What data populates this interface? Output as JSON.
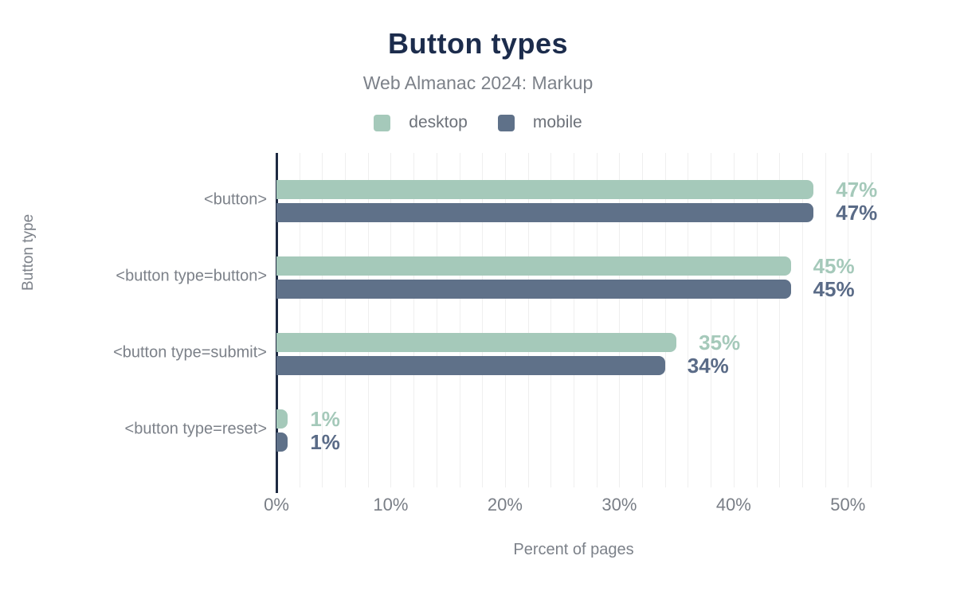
{
  "header": {
    "title": "Button types",
    "subtitle": "Web Almanac 2024: Markup"
  },
  "legend": {
    "items": [
      {
        "label": "desktop",
        "color": "#a5c9ba"
      },
      {
        "label": "mobile",
        "color": "#5f7189"
      }
    ]
  },
  "chart_data": {
    "type": "bar",
    "orientation": "horizontal",
    "title": "Button types",
    "subtitle": "Web Almanac 2024: Markup",
    "categories": [
      "<button>",
      "<button type=button>",
      "<button type=submit>",
      "<button type=reset>"
    ],
    "series": [
      {
        "name": "desktop",
        "color": "#a5c9ba",
        "label_color": "#a5c9ba",
        "values": [
          47,
          45,
          35,
          1
        ]
      },
      {
        "name": "mobile",
        "color": "#5f7189",
        "label_color": "#5a6b87",
        "values": [
          47,
          45,
          34,
          1
        ]
      }
    ],
    "value_suffix": "%",
    "xlabel": "Percent of pages",
    "ylabel": "Button type",
    "xlim": [
      0,
      52
    ],
    "xticks": [
      "0%",
      "10%",
      "20%",
      "30%",
      "40%",
      "50%"
    ],
    "xtick_values": [
      0,
      10,
      20,
      30,
      40,
      50
    ],
    "grid": "minor-vertical-every-2",
    "legend_position": "top",
    "colors": {
      "title": "#1c2c4c",
      "axis": "#1e2a42",
      "text_muted": "#7c8189",
      "gridline": "#efefef"
    }
  }
}
